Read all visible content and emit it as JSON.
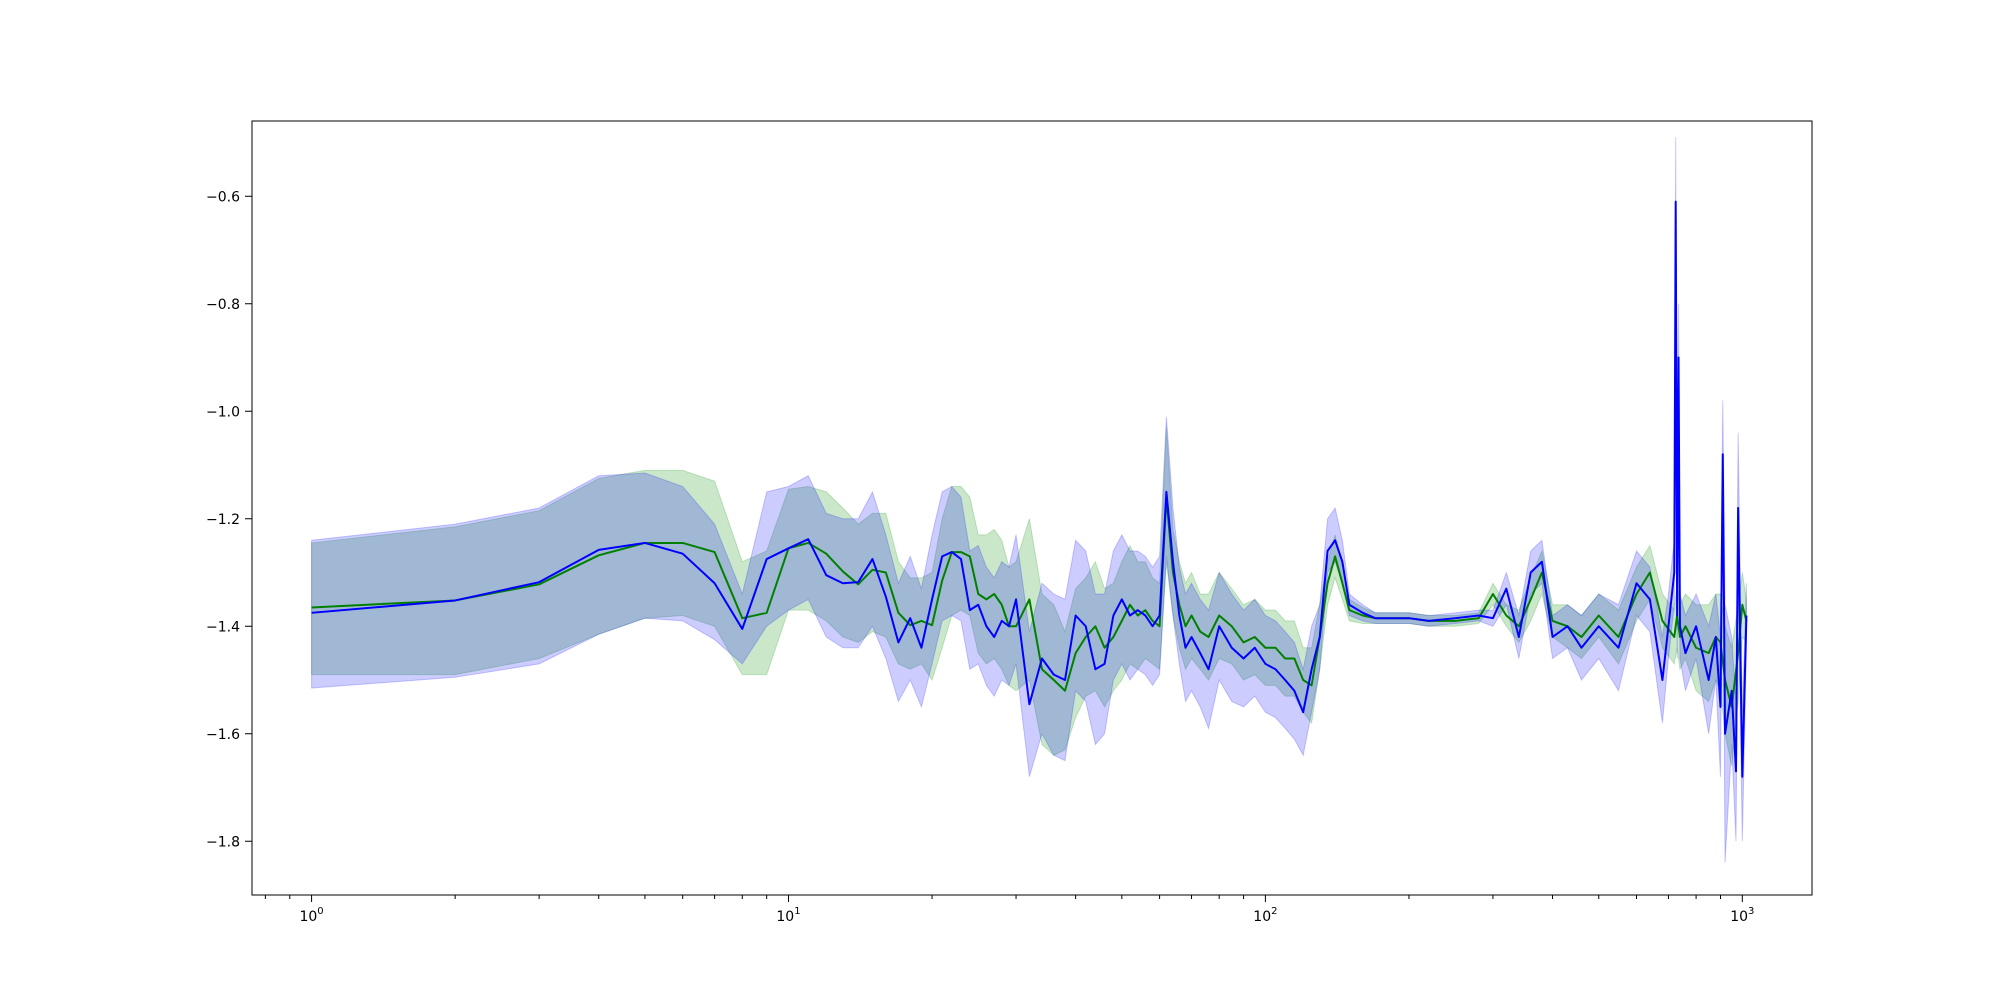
{
  "chart_data": {
    "type": "line",
    "title": "",
    "xlabel": "",
    "ylabel": "",
    "x_scale": "log",
    "xlim": [
      0.75,
      1400
    ],
    "ylim": [
      -1.9,
      -0.46
    ],
    "grid": false,
    "legend": "none",
    "x_ticks": [
      {
        "value": 1,
        "base": "10",
        "exp": "0"
      },
      {
        "value": 10,
        "base": "10",
        "exp": "1"
      },
      {
        "value": 100,
        "base": "10",
        "exp": "2"
      },
      {
        "value": 1000,
        "base": "10",
        "exp": "3"
      }
    ],
    "y_ticks": [
      {
        "value": -0.6,
        "label": "−0.6"
      },
      {
        "value": -0.8,
        "label": "−0.8"
      },
      {
        "value": -1.0,
        "label": "−1.0"
      },
      {
        "value": -1.2,
        "label": "−1.2"
      },
      {
        "value": -1.4,
        "label": "−1.4"
      },
      {
        "value": -1.6,
        "label": "−1.6"
      },
      {
        "value": -1.8,
        "label": "−1.8"
      }
    ],
    "series": [
      {
        "color": "#008000",
        "band_color": "#2ca02c",
        "band_opacity": 0.25,
        "x": [
          1,
          2,
          3,
          4,
          5,
          6,
          7,
          8,
          9,
          10,
          11,
          12,
          13,
          14,
          15,
          16,
          17,
          18,
          19,
          20,
          21,
          22,
          23,
          24,
          25,
          26,
          27,
          28,
          29,
          30,
          32,
          34,
          36,
          38,
          40,
          42,
          44,
          46,
          48,
          50,
          52,
          54,
          56,
          58,
          60,
          62,
          64,
          66,
          68,
          70,
          73,
          76,
          80,
          85,
          90,
          95,
          100,
          105,
          110,
          115,
          120,
          125,
          130,
          135,
          140,
          145,
          150,
          160,
          170,
          180,
          200,
          220,
          250,
          280,
          300,
          320,
          340,
          360,
          380,
          400,
          430,
          460,
          500,
          550,
          600,
          640,
          680,
          720,
          730,
          740,
          760,
          800,
          850,
          880,
          900,
          920,
          950,
          980,
          1000,
          1020
        ],
        "y": [
          -1.365,
          -1.352,
          -1.322,
          -1.268,
          -1.245,
          -1.245,
          -1.262,
          -1.385,
          -1.375,
          -1.255,
          -1.245,
          -1.265,
          -1.298,
          -1.322,
          -1.295,
          -1.3,
          -1.375,
          -1.398,
          -1.39,
          -1.398,
          -1.315,
          -1.262,
          -1.262,
          -1.27,
          -1.34,
          -1.35,
          -1.34,
          -1.36,
          -1.4,
          -1.4,
          -1.35,
          -1.48,
          -1.5,
          -1.52,
          -1.45,
          -1.42,
          -1.4,
          -1.44,
          -1.42,
          -1.39,
          -1.36,
          -1.38,
          -1.37,
          -1.39,
          -1.4,
          -1.16,
          -1.3,
          -1.36,
          -1.4,
          -1.38,
          -1.41,
          -1.42,
          -1.38,
          -1.4,
          -1.43,
          -1.42,
          -1.44,
          -1.44,
          -1.46,
          -1.46,
          -1.5,
          -1.51,
          -1.42,
          -1.32,
          -1.27,
          -1.32,
          -1.37,
          -1.38,
          -1.385,
          -1.385,
          -1.385,
          -1.39,
          -1.39,
          -1.385,
          -1.34,
          -1.38,
          -1.4,
          -1.35,
          -1.3,
          -1.39,
          -1.4,
          -1.42,
          -1.38,
          -1.42,
          -1.34,
          -1.3,
          -1.39,
          -1.42,
          -1.38,
          -1.42,
          -1.4,
          -1.44,
          -1.45,
          -1.42,
          -1.43,
          -1.5,
          -1.55,
          -1.45,
          -1.36,
          -1.39
        ],
        "lower": [
          -1.49,
          -1.49,
          -1.46,
          -1.415,
          -1.385,
          -1.38,
          -1.4,
          -1.49,
          -1.49,
          -1.37,
          -1.37,
          -1.39,
          -1.42,
          -1.43,
          -1.41,
          -1.42,
          -1.47,
          -1.48,
          -1.47,
          -1.5,
          -1.44,
          -1.38,
          -1.37,
          -1.38,
          -1.45,
          -1.47,
          -1.46,
          -1.48,
          -1.51,
          -1.52,
          -1.5,
          -1.62,
          -1.64,
          -1.63,
          -1.57,
          -1.53,
          -1.52,
          -1.55,
          -1.52,
          -1.5,
          -1.47,
          -1.48,
          -1.46,
          -1.47,
          -1.48,
          -1.28,
          -1.38,
          -1.44,
          -1.48,
          -1.46,
          -1.48,
          -1.5,
          -1.46,
          -1.47,
          -1.5,
          -1.49,
          -1.51,
          -1.51,
          -1.53,
          -1.53,
          -1.56,
          -1.58,
          -1.48,
          -1.36,
          -1.31,
          -1.35,
          -1.39,
          -1.395,
          -1.395,
          -1.395,
          -1.395,
          -1.4,
          -1.4,
          -1.395,
          -1.36,
          -1.4,
          -1.43,
          -1.39,
          -1.34,
          -1.42,
          -1.44,
          -1.46,
          -1.42,
          -1.47,
          -1.39,
          -1.35,
          -1.44,
          -1.47,
          -1.44,
          -1.48,
          -1.46,
          -1.52,
          -1.54,
          -1.5,
          -1.52,
          -1.6,
          -1.66,
          -1.54,
          -1.42,
          -1.43
        ],
        "upper": [
          -1.245,
          -1.215,
          -1.185,
          -1.125,
          -1.11,
          -1.11,
          -1.13,
          -1.28,
          -1.26,
          -1.145,
          -1.14,
          -1.15,
          -1.18,
          -1.21,
          -1.19,
          -1.19,
          -1.28,
          -1.31,
          -1.31,
          -1.3,
          -1.2,
          -1.14,
          -1.14,
          -1.16,
          -1.23,
          -1.23,
          -1.22,
          -1.24,
          -1.29,
          -1.28,
          -1.2,
          -1.34,
          -1.36,
          -1.41,
          -1.33,
          -1.31,
          -1.28,
          -1.33,
          -1.32,
          -1.28,
          -1.25,
          -1.28,
          -1.28,
          -1.31,
          -1.32,
          -1.03,
          -1.22,
          -1.28,
          -1.32,
          -1.3,
          -1.34,
          -1.34,
          -1.3,
          -1.33,
          -1.36,
          -1.35,
          -1.37,
          -1.37,
          -1.39,
          -1.39,
          -1.44,
          -1.44,
          -1.36,
          -1.28,
          -1.23,
          -1.29,
          -1.35,
          -1.365,
          -1.375,
          -1.375,
          -1.375,
          -1.38,
          -1.38,
          -1.375,
          -1.32,
          -1.36,
          -1.37,
          -1.31,
          -1.26,
          -1.36,
          -1.36,
          -1.38,
          -1.34,
          -1.37,
          -1.29,
          -1.25,
          -1.34,
          -1.37,
          -1.32,
          -1.36,
          -1.34,
          -1.36,
          -1.36,
          -1.34,
          -1.34,
          -1.4,
          -1.44,
          -1.36,
          -1.3,
          -1.35
        ]
      },
      {
        "color": "#0000ff",
        "band_color": "#0000ff",
        "band_opacity": 0.2,
        "x": [
          1,
          2,
          3,
          4,
          5,
          6,
          7,
          8,
          9,
          10,
          11,
          12,
          13,
          14,
          15,
          16,
          17,
          18,
          19,
          20,
          21,
          22,
          23,
          24,
          25,
          26,
          27,
          28,
          29,
          30,
          32,
          34,
          36,
          38,
          40,
          42,
          44,
          46,
          48,
          50,
          52,
          54,
          56,
          58,
          60,
          62,
          64,
          66,
          68,
          70,
          73,
          76,
          80,
          85,
          90,
          95,
          100,
          105,
          110,
          115,
          120,
          125,
          130,
          135,
          140,
          145,
          150,
          160,
          170,
          180,
          200,
          220,
          250,
          280,
          300,
          320,
          340,
          360,
          380,
          400,
          430,
          460,
          500,
          550,
          600,
          640,
          680,
          700,
          720,
          725,
          730,
          735,
          740,
          760,
          800,
          850,
          880,
          900,
          910,
          920,
          950,
          970,
          980,
          1000,
          1020
        ],
        "y": [
          -1.375,
          -1.352,
          -1.318,
          -1.258,
          -1.245,
          -1.265,
          -1.32,
          -1.405,
          -1.275,
          -1.255,
          -1.238,
          -1.305,
          -1.32,
          -1.318,
          -1.275,
          -1.345,
          -1.43,
          -1.385,
          -1.44,
          -1.35,
          -1.27,
          -1.262,
          -1.275,
          -1.37,
          -1.36,
          -1.4,
          -1.42,
          -1.39,
          -1.4,
          -1.35,
          -1.545,
          -1.46,
          -1.49,
          -1.5,
          -1.38,
          -1.4,
          -1.48,
          -1.47,
          -1.38,
          -1.35,
          -1.38,
          -1.37,
          -1.38,
          -1.4,
          -1.38,
          -1.15,
          -1.28,
          -1.38,
          -1.44,
          -1.42,
          -1.45,
          -1.48,
          -1.4,
          -1.44,
          -1.46,
          -1.44,
          -1.47,
          -1.48,
          -1.5,
          -1.52,
          -1.56,
          -1.48,
          -1.42,
          -1.26,
          -1.24,
          -1.28,
          -1.36,
          -1.375,
          -1.385,
          -1.385,
          -1.385,
          -1.39,
          -1.385,
          -1.38,
          -1.385,
          -1.33,
          -1.42,
          -1.3,
          -1.28,
          -1.42,
          -1.4,
          -1.44,
          -1.4,
          -1.44,
          -1.32,
          -1.35,
          -1.5,
          -1.4,
          -1.3,
          -0.61,
          -1.38,
          -0.9,
          -1.4,
          -1.45,
          -1.4,
          -1.5,
          -1.42,
          -1.55,
          -1.08,
          -1.6,
          -1.52,
          -1.67,
          -1.18,
          -1.68,
          -1.38
        ],
        "lower": [
          -1.515,
          -1.495,
          -1.47,
          -1.415,
          -1.385,
          -1.39,
          -1.425,
          -1.47,
          -1.4,
          -1.37,
          -1.35,
          -1.42,
          -1.44,
          -1.44,
          -1.4,
          -1.46,
          -1.54,
          -1.5,
          -1.55,
          -1.47,
          -1.39,
          -1.38,
          -1.39,
          -1.48,
          -1.47,
          -1.51,
          -1.53,
          -1.5,
          -1.51,
          -1.47,
          -1.68,
          -1.6,
          -1.64,
          -1.65,
          -1.52,
          -1.54,
          -1.62,
          -1.6,
          -1.5,
          -1.47,
          -1.5,
          -1.48,
          -1.49,
          -1.51,
          -1.49,
          -1.27,
          -1.38,
          -1.47,
          -1.54,
          -1.52,
          -1.55,
          -1.59,
          -1.5,
          -1.54,
          -1.55,
          -1.53,
          -1.56,
          -1.57,
          -1.59,
          -1.61,
          -1.64,
          -1.56,
          -1.48,
          -1.3,
          -1.28,
          -1.32,
          -1.38,
          -1.39,
          -1.395,
          -1.395,
          -1.395,
          -1.4,
          -1.395,
          -1.39,
          -1.4,
          -1.36,
          -1.46,
          -1.34,
          -1.32,
          -1.46,
          -1.44,
          -1.5,
          -1.46,
          -1.52,
          -1.38,
          -1.41,
          -1.58,
          -1.46,
          -1.36,
          -0.7,
          -1.46,
          -1.0,
          -1.46,
          -1.52,
          -1.46,
          -1.6,
          -1.5,
          -1.68,
          -1.18,
          -1.84,
          -1.62,
          -1.8,
          -1.3,
          -1.8,
          -1.44
        ],
        "upper": [
          -1.24,
          -1.21,
          -1.18,
          -1.12,
          -1.115,
          -1.14,
          -1.21,
          -1.34,
          -1.15,
          -1.14,
          -1.12,
          -1.19,
          -1.2,
          -1.2,
          -1.15,
          -1.23,
          -1.32,
          -1.27,
          -1.33,
          -1.23,
          -1.15,
          -1.14,
          -1.16,
          -1.26,
          -1.25,
          -1.29,
          -1.31,
          -1.28,
          -1.29,
          -1.23,
          -1.41,
          -1.32,
          -1.34,
          -1.35,
          -1.24,
          -1.26,
          -1.34,
          -1.34,
          -1.26,
          -1.23,
          -1.26,
          -1.26,
          -1.27,
          -1.29,
          -1.27,
          -1.01,
          -1.18,
          -1.29,
          -1.34,
          -1.32,
          -1.35,
          -1.37,
          -1.3,
          -1.34,
          -1.37,
          -1.35,
          -1.38,
          -1.39,
          -1.41,
          -1.43,
          -1.48,
          -1.4,
          -1.36,
          -1.2,
          -1.18,
          -1.24,
          -1.34,
          -1.36,
          -1.375,
          -1.375,
          -1.375,
          -1.38,
          -1.375,
          -1.37,
          -1.37,
          -1.3,
          -1.38,
          -1.26,
          -1.24,
          -1.38,
          -1.36,
          -1.38,
          -1.34,
          -1.36,
          -1.26,
          -1.29,
          -1.42,
          -1.34,
          -1.24,
          -0.49,
          -1.3,
          -0.8,
          -1.34,
          -1.38,
          -1.34,
          -1.4,
          -1.34,
          -1.42,
          -0.98,
          -1.36,
          -1.42,
          -1.54,
          -1.04,
          -1.56,
          -1.32
        ]
      }
    ]
  }
}
